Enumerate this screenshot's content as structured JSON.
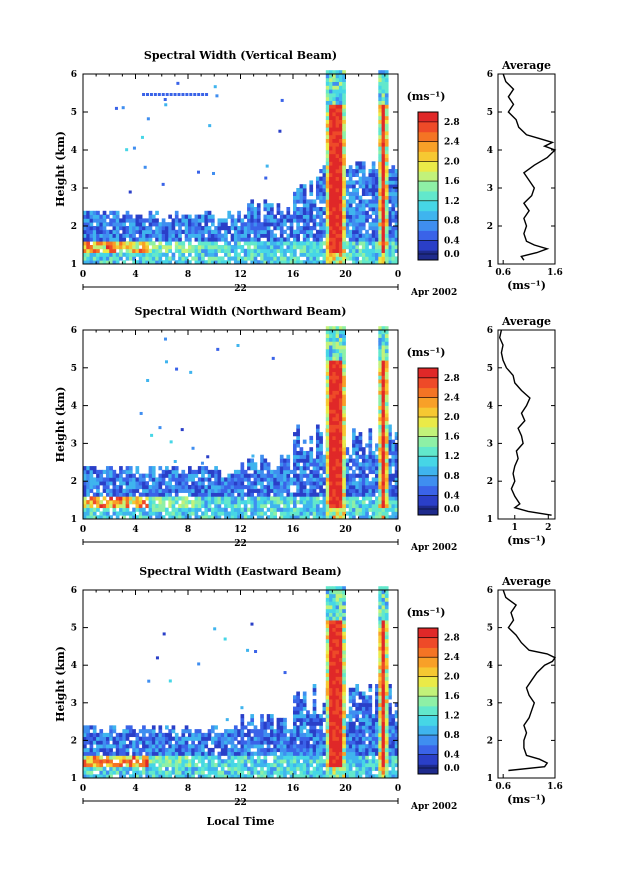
{
  "chart_data": [
    {
      "type": "heatmap",
      "title": "Spectral Width (Vertical Beam)",
      "ylabel": "Height (km)",
      "xticklabels": [
        "0",
        "4",
        "8",
        "12",
        "16",
        "20",
        "0"
      ],
      "yticklabels": [
        "1",
        "2",
        "3",
        "4",
        "5",
        "6"
      ],
      "xlim": [
        0,
        24
      ],
      "ylim": [
        1,
        6
      ],
      "date_label": "22",
      "month_label": "Apr 2002",
      "colorbar_unit": "(ms⁻¹)",
      "colorbar_ticks": [
        "0.0",
        "0.4",
        "0.8",
        "1.2",
        "1.6",
        "2.0",
        "2.4",
        "2.8"
      ],
      "colorbar_range": [
        0.0,
        3.0
      ],
      "average": {
        "title": "Average",
        "xlabel": "(ms⁻¹)",
        "xticklabels": [
          "0.6",
          "1.6"
        ],
        "xlim": [
          0.5,
          1.6
        ],
        "xticks": [
          0.6,
          1.6
        ],
        "yticklabels": [
          "1",
          "2",
          "3",
          "4",
          "5",
          "6"
        ],
        "profile": {
          "height": [
            1.1,
            1.2,
            1.3,
            1.4,
            1.5,
            1.6,
            1.8,
            2.0,
            2.2,
            2.4,
            2.6,
            2.8,
            3.0,
            3.2,
            3.4,
            3.6,
            3.8,
            4.0,
            4.1,
            4.2,
            4.3,
            4.4,
            4.6,
            4.8,
            5.0,
            5.2,
            5.4,
            5.6,
            5.8,
            6.0
          ],
          "value": [
            1.0,
            0.95,
            1.25,
            1.45,
            1.2,
            1.05,
            1.0,
            1.05,
            1.0,
            1.1,
            1.0,
            1.15,
            1.2,
            1.1,
            1.0,
            1.2,
            1.45,
            1.6,
            1.4,
            1.55,
            1.3,
            1.05,
            0.9,
            0.85,
            0.7,
            0.8,
            0.7,
            0.8,
            0.65,
            0.6
          ]
        }
      }
    },
    {
      "type": "heatmap",
      "title": "Spectral Width (Northward Beam)",
      "ylabel": "Height (km)",
      "xticklabels": [
        "0",
        "4",
        "8",
        "12",
        "16",
        "20",
        "0"
      ],
      "yticklabels": [
        "1",
        "2",
        "3",
        "4",
        "5",
        "6"
      ],
      "xlim": [
        0,
        24
      ],
      "ylim": [
        1,
        6
      ],
      "date_label": "22",
      "month_label": "Apr 2002",
      "colorbar_unit": "(ms⁻¹)",
      "colorbar_ticks": [
        "0.0",
        "0.4",
        "0.8",
        "1.2",
        "1.6",
        "2.0",
        "2.4",
        "2.8"
      ],
      "colorbar_range": [
        0.0,
        3.0
      ],
      "average": {
        "title": "Average",
        "xlabel": "(ms⁻¹)",
        "xticklabels": [
          "1",
          "2"
        ],
        "xlim": [
          0.5,
          2.2
        ],
        "xticks": [
          1,
          2
        ],
        "yticklabels": [
          "1",
          "2",
          "3",
          "4",
          "5",
          "6"
        ],
        "profile": {
          "height": [
            1.1,
            1.2,
            1.3,
            1.4,
            1.6,
            1.8,
            2.0,
            2.2,
            2.4,
            2.6,
            2.8,
            3.0,
            3.2,
            3.4,
            3.6,
            3.8,
            4.0,
            4.2,
            4.4,
            4.6,
            4.8,
            5.0,
            5.2,
            5.4,
            5.6,
            5.8,
            6.0
          ],
          "value": [
            2.1,
            1.4,
            1.0,
            1.15,
            1.0,
            0.9,
            1.0,
            0.95,
            1.0,
            1.1,
            1.05,
            1.25,
            1.2,
            1.1,
            1.3,
            1.2,
            1.35,
            1.45,
            1.2,
            1.0,
            0.95,
            0.75,
            0.65,
            0.6,
            0.65,
            0.55,
            0.6
          ]
        }
      }
    },
    {
      "type": "heatmap",
      "title": "Spectral Width (Eastward Beam)",
      "ylabel": "Height (km)",
      "xlabel": "Local Time",
      "xticklabels": [
        "0",
        "4",
        "8",
        "12",
        "16",
        "20",
        "0"
      ],
      "yticklabels": [
        "1",
        "2",
        "3",
        "4",
        "5",
        "6"
      ],
      "xlim": [
        0,
        24
      ],
      "ylim": [
        1,
        6
      ],
      "date_label": "22",
      "month_label": "Apr 2002",
      "colorbar_unit": "(ms⁻¹)",
      "colorbar_ticks": [
        "0.0",
        "0.4",
        "0.8",
        "1.2",
        "1.6",
        "2.0",
        "2.4",
        "2.8"
      ],
      "colorbar_range": [
        0.0,
        3.0
      ],
      "average": {
        "title": "Average",
        "xlabel": "(ms⁻¹)",
        "xticklabels": [
          "0.6",
          "1.6"
        ],
        "xlim": [
          0.5,
          1.6
        ],
        "xticks": [
          0.6,
          1.6
        ],
        "yticklabels": [
          "1",
          "2",
          "3",
          "4",
          "5",
          "6"
        ],
        "profile": {
          "height": [
            1.2,
            1.3,
            1.4,
            1.5,
            1.6,
            1.8,
            2.0,
            2.2,
            2.4,
            2.6,
            2.8,
            3.0,
            3.2,
            3.4,
            3.6,
            3.8,
            4.0,
            4.1,
            4.2,
            4.3,
            4.4,
            4.6,
            4.8,
            5.0,
            5.2,
            5.4,
            5.6,
            5.8,
            6.0
          ],
          "value": [
            0.7,
            1.4,
            1.45,
            1.3,
            1.05,
            1.0,
            1.0,
            1.05,
            1.0,
            1.1,
            1.15,
            1.2,
            1.1,
            1.05,
            1.15,
            1.25,
            1.4,
            1.55,
            1.6,
            1.45,
            1.1,
            0.95,
            0.85,
            0.7,
            0.8,
            0.75,
            0.85,
            0.65,
            0.6
          ]
        }
      }
    }
  ],
  "colorscale": [
    "#1e2a8c",
    "#2a3fc8",
    "#3a63e8",
    "#3f8ef0",
    "#3fb4ee",
    "#46d6e6",
    "#62e8cc",
    "#8ef0a6",
    "#c2f27a",
    "#eaea48",
    "#f6c832",
    "#f8a028",
    "#f47424",
    "#ee4a28",
    "#e02828"
  ]
}
